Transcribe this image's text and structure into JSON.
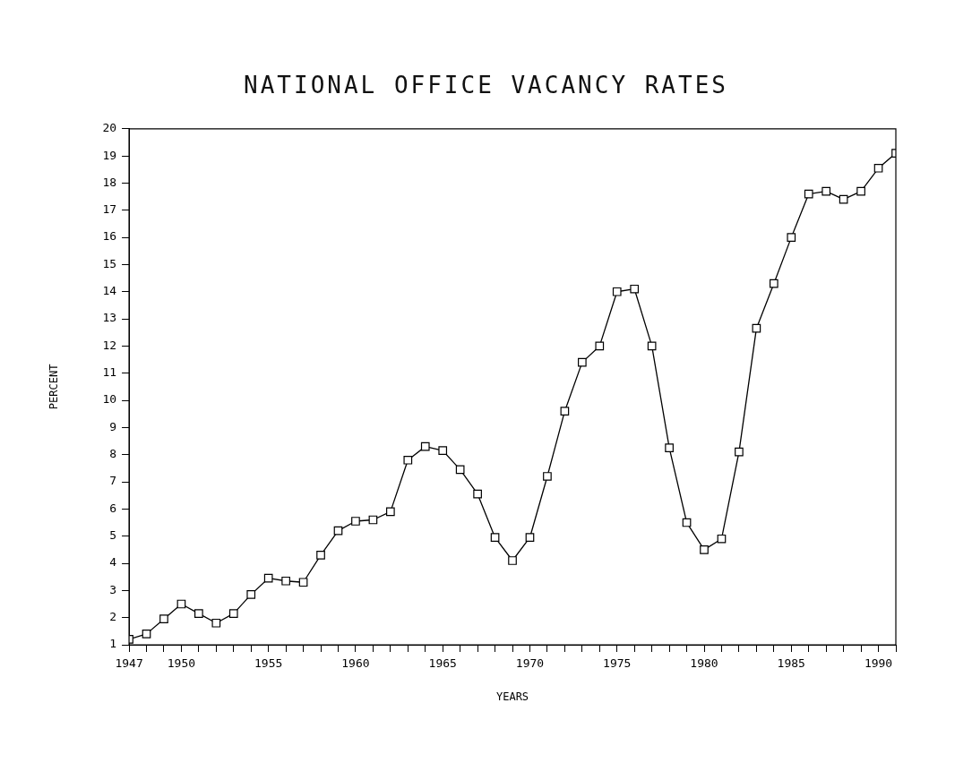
{
  "chart_data": {
    "type": "line",
    "title": "NATIONAL OFFICE VACANCY RATES",
    "xlabel": "YEARS",
    "ylabel": "PERCENT",
    "x": [
      1947,
      1948,
      1949,
      1950,
      1951,
      1952,
      1953,
      1954,
      1955,
      1956,
      1957,
      1958,
      1959,
      1960,
      1961,
      1962,
      1963,
      1964,
      1965,
      1966,
      1967,
      1968,
      1969,
      1970,
      1971,
      1972,
      1973,
      1974,
      1975,
      1976,
      1977,
      1978,
      1979,
      1980,
      1981,
      1982,
      1983,
      1984,
      1985,
      1986,
      1987,
      1988,
      1989,
      1990,
      1991
    ],
    "series": [
      {
        "color": "#000000",
        "values": [
          1.2,
          1.4,
          1.95,
          2.5,
          2.15,
          1.8,
          2.15,
          2.85,
          3.45,
          3.35,
          3.3,
          4.3,
          5.2,
          5.55,
          5.6,
          5.9,
          7.8,
          8.3,
          8.15,
          7.45,
          6.55,
          4.95,
          4.1,
          4.95,
          7.2,
          9.6,
          11.4,
          12.0,
          14.0,
          14.1,
          12.0,
          8.25,
          5.5,
          4.5,
          4.9,
          8.1,
          12.65,
          14.3,
          16.0,
          17.6,
          17.7,
          17.4,
          17.7,
          18.55,
          19.1
        ]
      }
    ],
    "xlim": [
      1947,
      1991
    ],
    "xticks": [
      1947,
      {
        "value": 1948,
        "label": null
      },
      {
        "value": 1949,
        "label": null
      },
      1950,
      {
        "value": 1951,
        "label": null
      },
      {
        "value": 1952,
        "label": null
      },
      {
        "value": 1953,
        "label": null
      },
      {
        "value": 1954,
        "label": null
      },
      1955,
      {
        "value": 1956,
        "label": null
      },
      {
        "value": 1957,
        "label": null
      },
      {
        "value": 1958,
        "label": null
      },
      {
        "value": 1959,
        "label": null
      },
      1960,
      {
        "value": 1961,
        "label": null
      },
      {
        "value": 1962,
        "label": null
      },
      {
        "value": 1963,
        "label": null
      },
      {
        "value": 1964,
        "label": null
      },
      1965,
      {
        "value": 1966,
        "label": null
      },
      {
        "value": 1967,
        "label": null
      },
      {
        "value": 1968,
        "label": null
      },
      {
        "value": 1969,
        "label": null
      },
      1970,
      {
        "value": 1971,
        "label": null
      },
      {
        "value": 1972,
        "label": null
      },
      {
        "value": 1973,
        "label": null
      },
      {
        "value": 1974,
        "label": null
      },
      1975,
      {
        "value": 1976,
        "label": null
      },
      {
        "value": 1977,
        "label": null
      },
      {
        "value": 1978,
        "label": null
      },
      {
        "value": 1979,
        "label": null
      },
      1980,
      {
        "value": 1981,
        "label": null
      },
      {
        "value": 1982,
        "label": null
      },
      {
        "value": 1983,
        "label": null
      },
      {
        "value": 1984,
        "label": null
      },
      1985,
      {
        "value": 1986,
        "label": null
      },
      {
        "value": 1987,
        "label": null
      },
      {
        "value": 1988,
        "label": null
      },
      {
        "value": 1989,
        "label": null
      },
      1990,
      {
        "value": 1991,
        "label": null
      }
    ],
    "ylim": [
      1,
      20
    ],
    "yticks": [
      1,
      2,
      3,
      4,
      5,
      6,
      7,
      8,
      9,
      10,
      11,
      12,
      13,
      14,
      15,
      16,
      17,
      18,
      19,
      20
    ],
    "grid": false,
    "legend": false,
    "marker": "square",
    "line_style": "solid"
  }
}
